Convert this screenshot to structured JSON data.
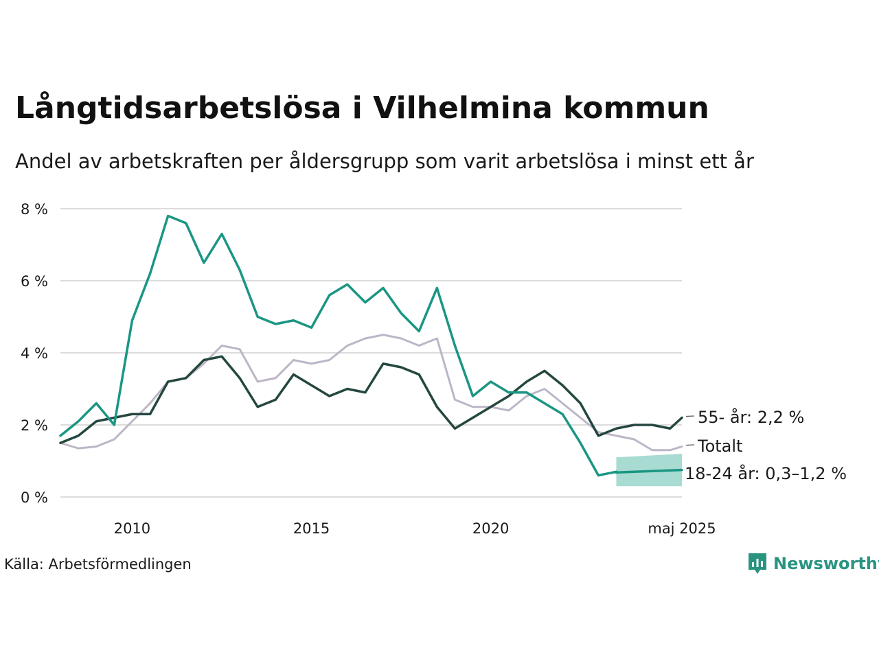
{
  "title": "Långtidsarbetslösa i Vilhelmina kommun",
  "subtitle": "Andel av arbetskraften per åldersgrupp som varit arbetslösa i minst ett år",
  "source": "Källa: Arbetsförmedlingen",
  "brand": "Newsworthy",
  "colors": {
    "youth": "#1a9683",
    "older": "#24473f",
    "total": "#bcb6c6",
    "band": "#a8dbd1",
    "grid": "#dcdcdc",
    "brand": "#2a9481"
  },
  "chart_data": {
    "type": "line",
    "title": "Långtidsarbetslösa i Vilhelmina kommun",
    "subtitle": "Andel av arbetskraften per åldersgrupp som varit arbetslösa i minst ett år",
    "xlabel": "",
    "ylabel": "",
    "xlim": [
      2008.0,
      2025.33
    ],
    "ylim": [
      0,
      8
    ],
    "yticks": [
      0,
      2,
      4,
      6,
      8
    ],
    "ytick_labels": [
      "0 %",
      "2 %",
      "4 %",
      "6 %",
      "8 %"
    ],
    "xticks": [
      2010,
      2015,
      2020,
      2025.33
    ],
    "xtick_labels": [
      "2010",
      "2015",
      "2020",
      "maj 2025"
    ],
    "grid": true,
    "series": [
      {
        "name": "Totalt",
        "end_label": "Totalt",
        "key": "total",
        "x": [
          2008.0,
          2008.5,
          2009.0,
          2009.5,
          2010.0,
          2010.5,
          2011.0,
          2011.5,
          2012.0,
          2012.5,
          2013.0,
          2013.5,
          2014.0,
          2014.5,
          2015.0,
          2015.5,
          2016.0,
          2016.5,
          2017.0,
          2017.5,
          2018.0,
          2018.5,
          2019.0,
          2019.5,
          2020.0,
          2020.5,
          2021.0,
          2021.5,
          2022.0,
          2022.5,
          2023.0,
          2023.5,
          2024.0,
          2024.5,
          2025.0,
          2025.33
        ],
        "values": [
          1.5,
          1.35,
          1.4,
          1.6,
          2.1,
          2.6,
          3.2,
          3.3,
          3.7,
          4.2,
          4.1,
          3.2,
          3.3,
          3.8,
          3.7,
          3.8,
          4.2,
          4.4,
          4.5,
          4.4,
          4.2,
          4.4,
          2.7,
          2.5,
          2.5,
          2.4,
          2.8,
          3.0,
          2.6,
          2.2,
          1.8,
          1.7,
          1.6,
          1.3,
          1.3,
          1.4
        ]
      },
      {
        "name": "55- år",
        "end_label": "55- år: 2,2 %",
        "key": "older",
        "x": [
          2008.0,
          2008.5,
          2009.0,
          2009.5,
          2010.0,
          2010.5,
          2011.0,
          2011.5,
          2012.0,
          2012.5,
          2013.0,
          2013.5,
          2014.0,
          2014.5,
          2015.0,
          2015.5,
          2016.0,
          2016.5,
          2017.0,
          2017.5,
          2018.0,
          2018.5,
          2019.0,
          2019.5,
          2020.0,
          2020.5,
          2021.0,
          2021.5,
          2022.0,
          2022.5,
          2023.0,
          2023.5,
          2024.0,
          2024.5,
          2025.0,
          2025.33
        ],
        "values": [
          1.5,
          1.7,
          2.1,
          2.2,
          2.3,
          2.3,
          3.2,
          3.3,
          3.8,
          3.9,
          3.3,
          2.5,
          2.7,
          3.4,
          3.1,
          2.8,
          3.0,
          2.9,
          3.7,
          3.6,
          3.4,
          2.5,
          1.9,
          2.2,
          2.5,
          2.8,
          3.2,
          3.5,
          3.1,
          2.6,
          1.7,
          1.9,
          2.0,
          2.0,
          1.9,
          2.2
        ]
      },
      {
        "name": "18-24 år",
        "end_label": "18-24 år: 0,3–1,2 %",
        "key": "youth",
        "x": [
          2008.0,
          2008.5,
          2009.0,
          2009.5,
          2010.0,
          2010.5,
          2011.0,
          2011.5,
          2012.0,
          2012.5,
          2013.0,
          2013.5,
          2014.0,
          2014.5,
          2015.0,
          2015.5,
          2016.0,
          2016.5,
          2017.0,
          2017.5,
          2018.0,
          2018.5,
          2019.0,
          2019.5,
          2020.0,
          2020.5,
          2021.0,
          2021.5,
          2022.0,
          2022.5,
          2023.0,
          2023.5
        ],
        "values": [
          1.7,
          2.1,
          2.6,
          2.0,
          4.9,
          6.2,
          7.8,
          7.6,
          6.5,
          7.3,
          6.3,
          5.0,
          4.8,
          4.9,
          4.7,
          5.6,
          5.9,
          5.4,
          5.8,
          5.1,
          4.6,
          5.8,
          4.2,
          2.8,
          3.2,
          2.9,
          2.9,
          2.6,
          2.3,
          1.5,
          0.6,
          0.7
        ]
      },
      {
        "name": "18-24 år (uppskattning)",
        "key": "youth_estimate",
        "x": [
          2023.5,
          2025.33
        ],
        "values": [
          0.68,
          0.75
        ],
        "band_low": [
          0.3,
          0.3
        ],
        "band_high": [
          1.1,
          1.2
        ]
      }
    ]
  }
}
